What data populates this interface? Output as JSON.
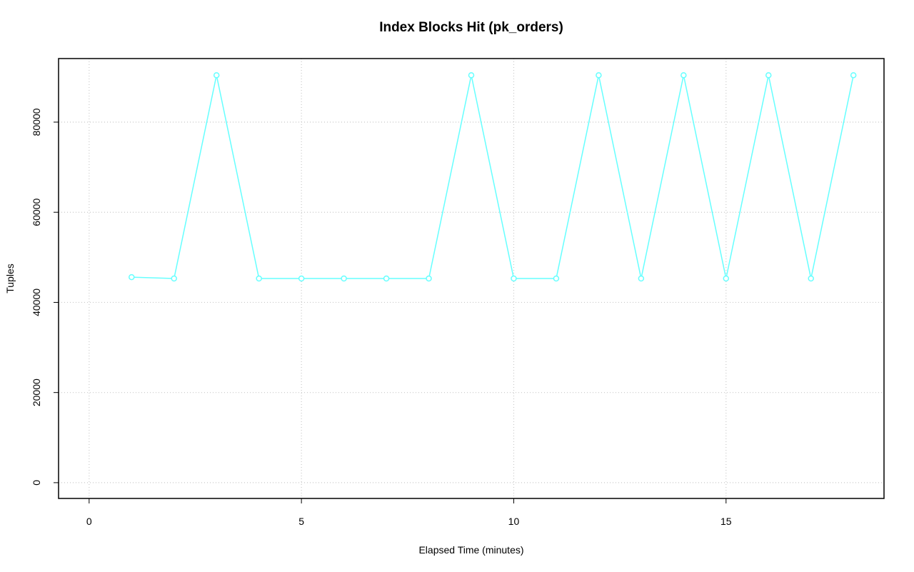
{
  "chart_data": {
    "type": "line",
    "title": "Index Blocks Hit (pk_orders)",
    "x_label": "Elapsed Time (minutes)",
    "y_label": "Tuples",
    "x": [
      1,
      2,
      3,
      4,
      5,
      6,
      7,
      8,
      9,
      10,
      11,
      12,
      13,
      14,
      15,
      16,
      17,
      18
    ],
    "series": [
      {
        "name": "pk_orders",
        "color": "#66ffff",
        "values": [
          45600,
          45300,
          90400,
          45300,
          45300,
          45300,
          45300,
          45300,
          90400,
          45300,
          45300,
          90400,
          45300,
          90400,
          45300,
          90400,
          45300,
          90400
        ]
      }
    ],
    "xlim": [
      -0.72,
      18.72
    ],
    "ylim": [
      -3500,
      94100
    ],
    "xticks": [
      0,
      5,
      10,
      15
    ],
    "yticks": [
      0,
      20000,
      40000,
      60000,
      80000
    ],
    "grid": true
  }
}
